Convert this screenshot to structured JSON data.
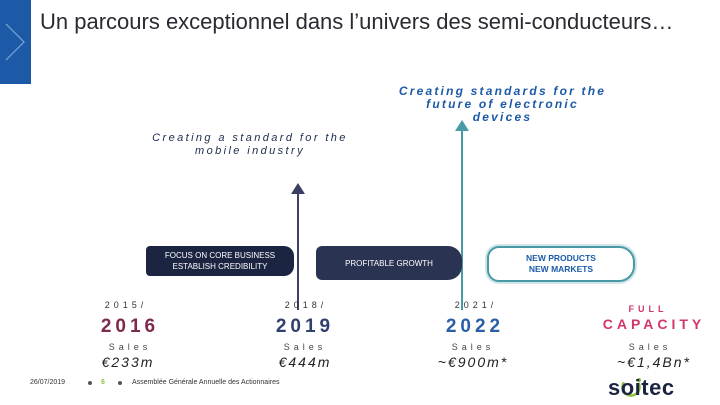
{
  "title": "Un parcours exceptionnel dans l’univers des semi-conducteurs…",
  "taglines": {
    "future": "Creating standards for the future of electronic devices",
    "mobile": "Creating a standard for the mobile industry"
  },
  "phases": [
    {
      "label_line1": "FOCUS ON CORE BUSINESS",
      "label_line2": "ESTABLISH CREDIBILITY"
    },
    {
      "label": "PROFITABLE GROWTH"
    },
    {
      "label_line1": "NEW PRODUCTS",
      "label_line2": "NEW MARKETS"
    }
  ],
  "milestones": [
    {
      "fy": "2015/",
      "year": "2016",
      "sales_label": "Sales",
      "amount": "€233m"
    },
    {
      "fy": "2018/",
      "year": "2019",
      "sales_label": "Sales",
      "amount": "€444m"
    },
    {
      "fy": "2021/",
      "year": "2022",
      "sales_label": "Sales",
      "amount": "~€900m*"
    },
    {
      "fy": "FULL",
      "year": "CAPACITY",
      "sales_label": "Sales",
      "amount": "~€1,4Bn*"
    }
  ],
  "footer": {
    "date": "26/07/2019",
    "page": "6",
    "event": "Assemblée Générale Annuelle des Actionnaires"
  },
  "logo": {
    "text": "soitec"
  },
  "colors": {
    "brand_blue": "#1c5aa8",
    "teal": "#4a9aa6",
    "dark_navy": "#1b2440",
    "accent_green": "#8fc23f"
  },
  "icons": [
    "chevron-right-icon",
    "soitec-logo"
  ]
}
